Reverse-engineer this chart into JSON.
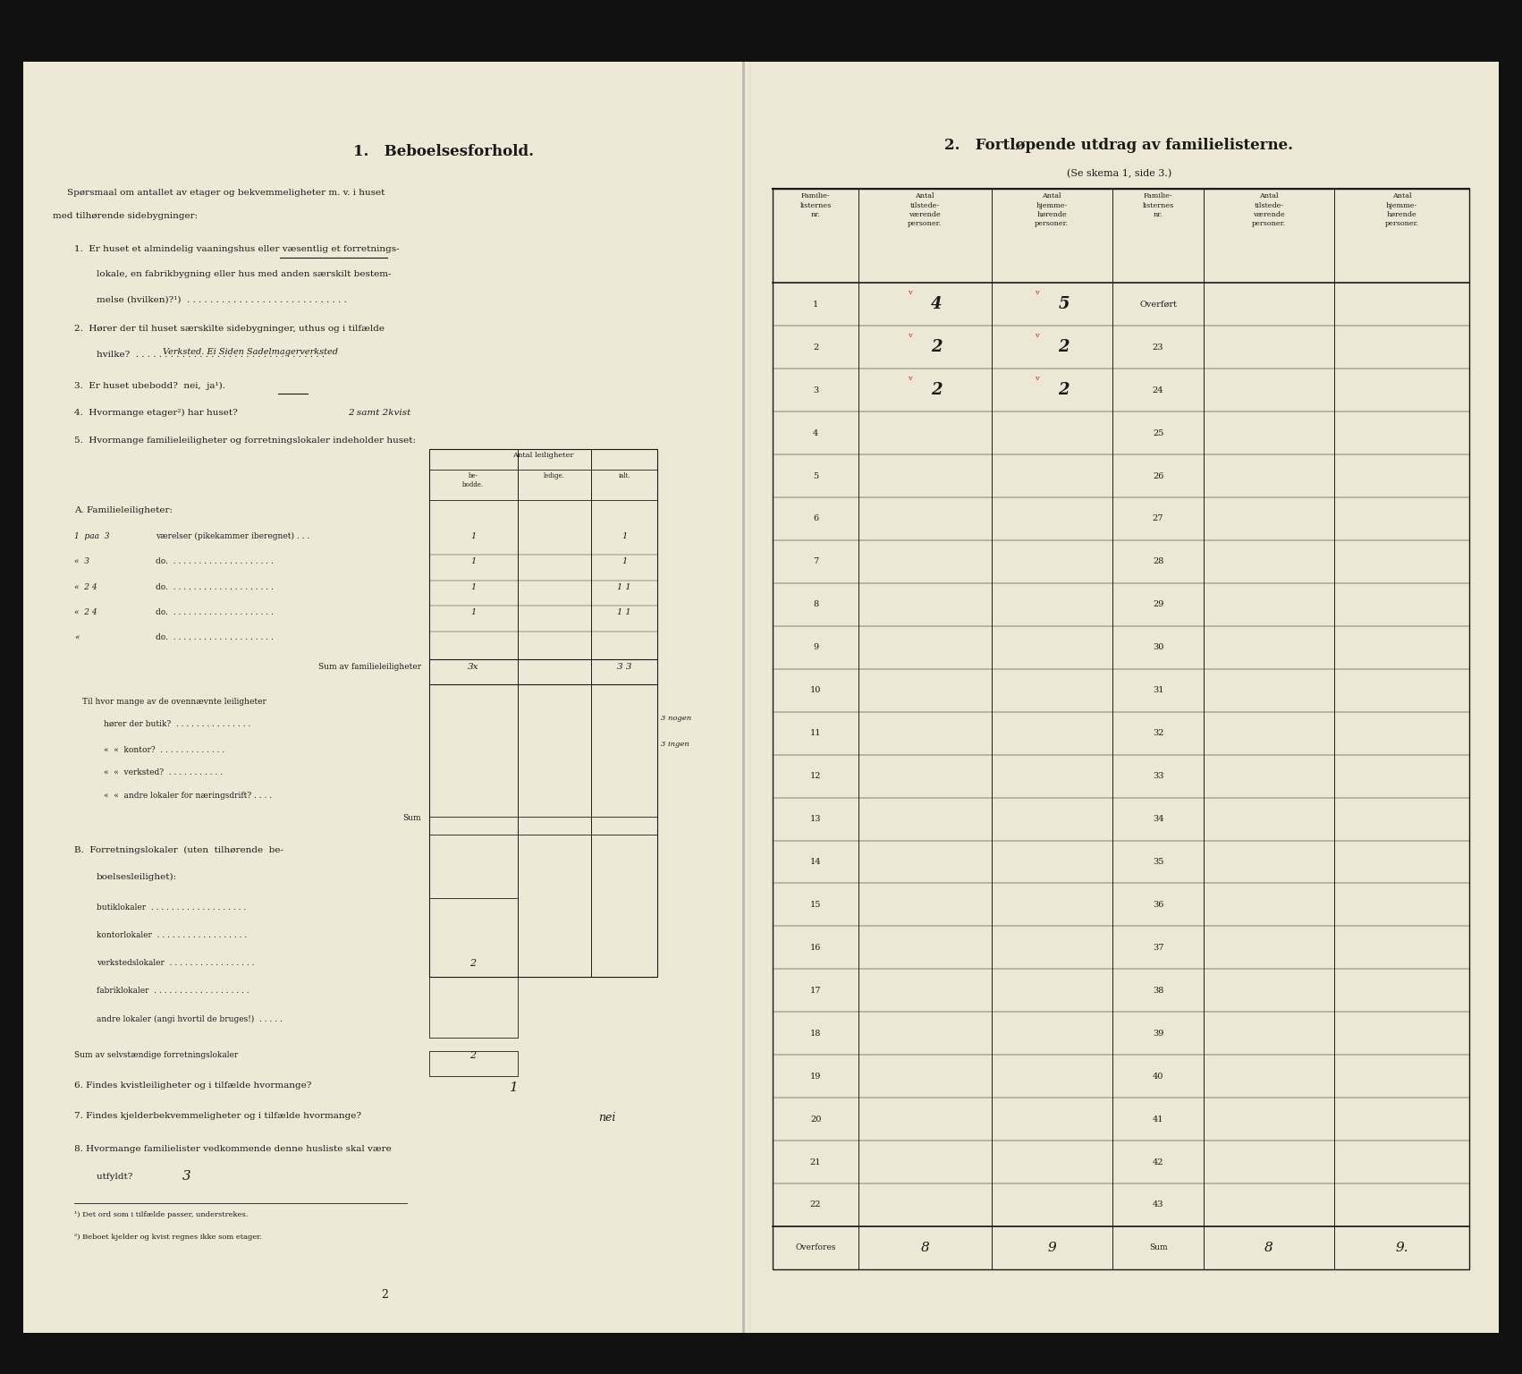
{
  "dark_bg": "#111111",
  "green_bar": "#2d5a1b",
  "left_page_bg": "#eee9d6",
  "right_page_bg": "#ede8d5",
  "text_color": "#1a1a1a",
  "handwriting_color": "#1a1a1a",
  "handwriting_red": "#cc2200",
  "title1": "1.   Beboelsesforhold.",
  "title2": "2.   Fortløpende utdrag av familielisterne.",
  "subtitle2": "(Se skema 1, side 3.)",
  "right_rows": [
    {
      "nr": "1",
      "til": "4",
      "hjem": "5",
      "nr2": "Overført",
      "til2": "",
      "hjem2": ""
    },
    {
      "nr": "2",
      "til": "2",
      "hjem": "2",
      "nr2": "23",
      "til2": "",
      "hjem2": ""
    },
    {
      "nr": "3",
      "til": "2",
      "hjem": "2",
      "nr2": "24",
      "til2": "",
      "hjem2": ""
    },
    {
      "nr": "4",
      "til": "",
      "hjem": "",
      "nr2": "25",
      "til2": "",
      "hjem2": ""
    },
    {
      "nr": "5",
      "til": "",
      "hjem": "",
      "nr2": "26",
      "til2": "",
      "hjem2": ""
    },
    {
      "nr": "6",
      "til": "",
      "hjem": "",
      "nr2": "27",
      "til2": "",
      "hjem2": ""
    },
    {
      "nr": "7",
      "til": "",
      "hjem": "",
      "nr2": "28",
      "til2": "",
      "hjem2": ""
    },
    {
      "nr": "8",
      "til": "",
      "hjem": "",
      "nr2": "29",
      "til2": "",
      "hjem2": ""
    },
    {
      "nr": "9",
      "til": "",
      "hjem": "",
      "nr2": "30",
      "til2": "",
      "hjem2": ""
    },
    {
      "nr": "10",
      "til": "",
      "hjem": "",
      "nr2": "31",
      "til2": "",
      "hjem2": ""
    },
    {
      "nr": "11",
      "til": "",
      "hjem": "",
      "nr2": "32",
      "til2": "",
      "hjem2": ""
    },
    {
      "nr": "12",
      "til": "",
      "hjem": "",
      "nr2": "33",
      "til2": "",
      "hjem2": ""
    },
    {
      "nr": "13",
      "til": "",
      "hjem": "",
      "nr2": "34",
      "til2": "",
      "hjem2": ""
    },
    {
      "nr": "14",
      "til": "",
      "hjem": "",
      "nr2": "35",
      "til2": "",
      "hjem2": ""
    },
    {
      "nr": "15",
      "til": "",
      "hjem": "",
      "nr2": "36",
      "til2": "",
      "hjem2": ""
    },
    {
      "nr": "16",
      "til": "",
      "hjem": "",
      "nr2": "37",
      "til2": "",
      "hjem2": ""
    },
    {
      "nr": "17",
      "til": "",
      "hjem": "",
      "nr2": "38",
      "til2": "",
      "hjem2": ""
    },
    {
      "nr": "18",
      "til": "",
      "hjem": "",
      "nr2": "39",
      "til2": "",
      "hjem2": ""
    },
    {
      "nr": "19",
      "til": "",
      "hjem": "",
      "nr2": "40",
      "til2": "",
      "hjem2": ""
    },
    {
      "nr": "20",
      "til": "",
      "hjem": "",
      "nr2": "41",
      "til2": "",
      "hjem2": ""
    },
    {
      "nr": "21",
      "til": "",
      "hjem": "",
      "nr2": "42",
      "til2": "",
      "hjem2": ""
    },
    {
      "nr": "22",
      "til": "",
      "hjem": "",
      "nr2": "43",
      "til2": "",
      "hjem2": ""
    },
    {
      "nr": "Overfores",
      "til": "8",
      "hjem": "9",
      "nr2": "Sum",
      "til2": "8",
      "hjem2": "9."
    }
  ]
}
